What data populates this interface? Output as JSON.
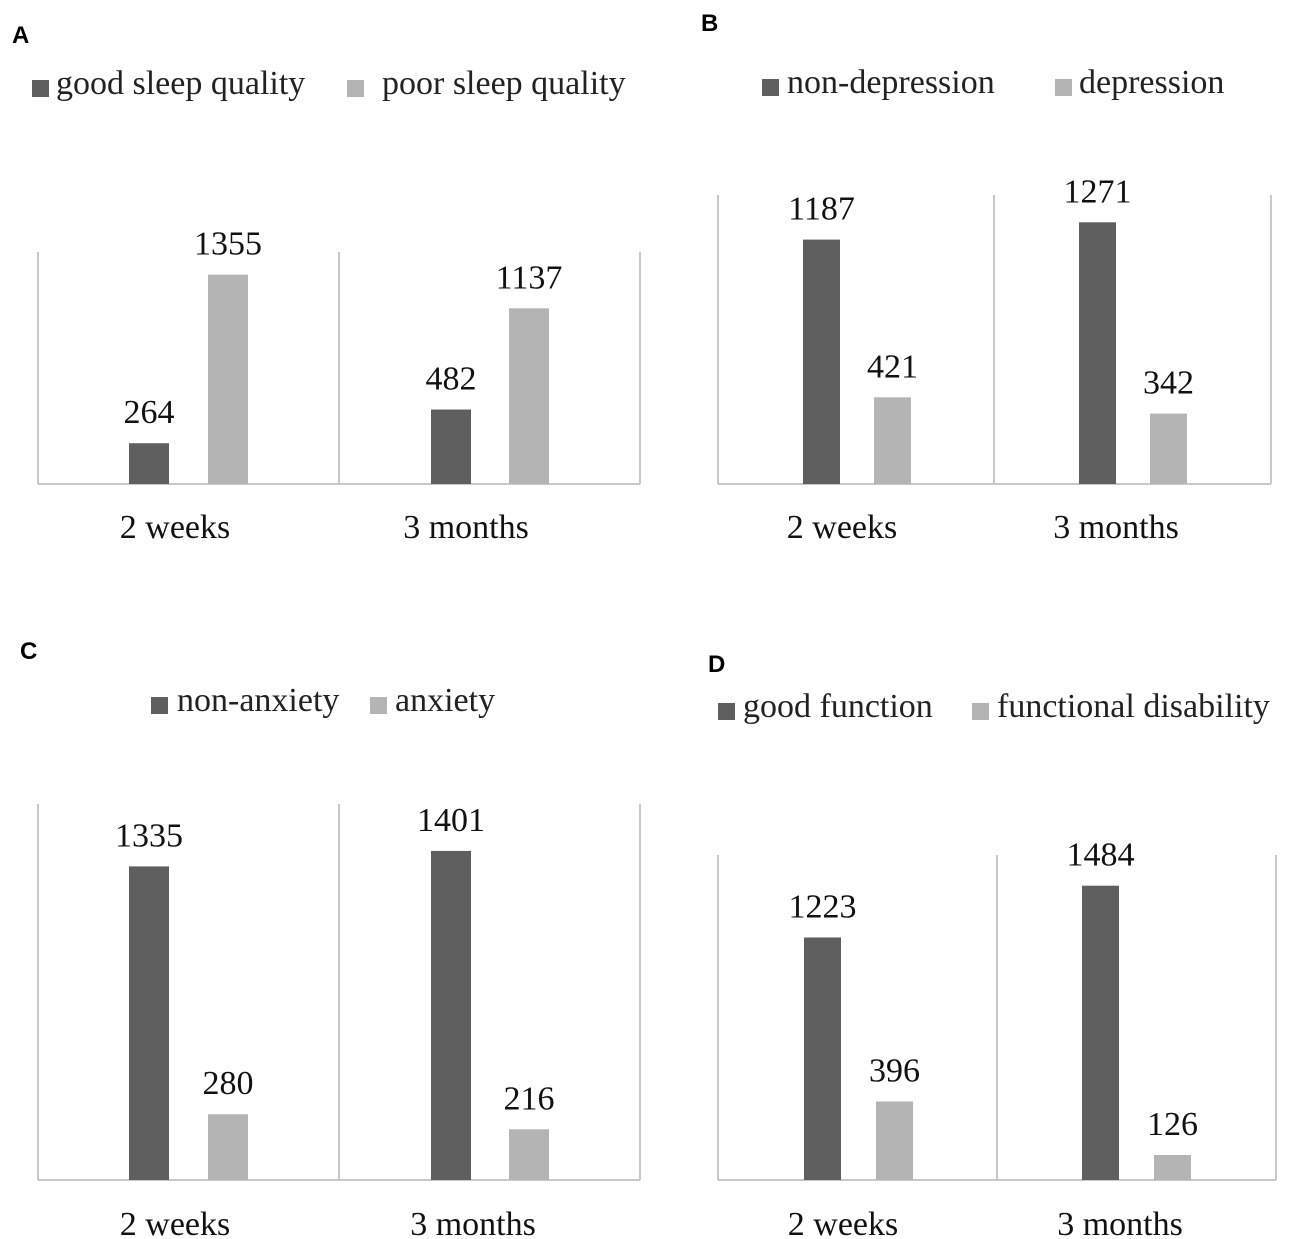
{
  "colors": {
    "dark": "#5f5f5f",
    "light": "#b4b4b4",
    "axis": "#c8c8c8"
  },
  "chart_data": [
    {
      "panel": "A",
      "type": "bar",
      "categories": [
        "2 weeks",
        "3 months"
      ],
      "series": [
        {
          "name": "good sleep quality",
          "values": [
            264,
            482
          ]
        },
        {
          "name": "poor sleep quality",
          "values": [
            1355,
            1137
          ]
        }
      ],
      "legend_position": "top",
      "grid": false
    },
    {
      "panel": "B",
      "type": "bar",
      "categories": [
        "2 weeks",
        "3 months"
      ],
      "series": [
        {
          "name": "non-depression",
          "values": [
            1187,
            1271
          ]
        },
        {
          "name": "depression",
          "values": [
            421,
            342
          ]
        }
      ],
      "legend_position": "top",
      "grid": false
    },
    {
      "panel": "C",
      "type": "bar",
      "categories": [
        "2 weeks",
        "3 months"
      ],
      "series": [
        {
          "name": "non-anxiety",
          "values": [
            1335,
            1401
          ]
        },
        {
          "name": "anxiety",
          "values": [
            280,
            216
          ]
        }
      ],
      "legend_position": "top",
      "grid": false
    },
    {
      "panel": "D",
      "type": "bar",
      "categories": [
        "2 weeks",
        "3 months"
      ],
      "series": [
        {
          "name": "good function",
          "values": [
            1223,
            1484
          ]
        },
        {
          "name": "functional disability",
          "values": [
            396,
            126
          ]
        }
      ],
      "legend_position": "top",
      "grid": false
    }
  ]
}
